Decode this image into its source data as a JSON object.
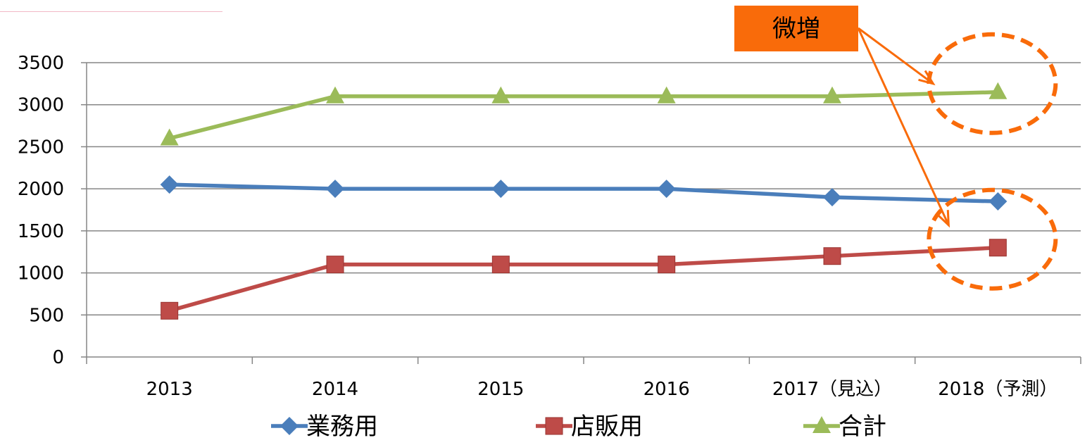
{
  "chart_data": {
    "type": "line",
    "title": "",
    "xlabel": "",
    "ylabel": "",
    "categories": [
      "2013",
      "2014",
      "2015",
      "2016",
      "2017（見込）",
      "2018（予測）"
    ],
    "ylim": [
      0,
      3500
    ],
    "yticks": [
      0,
      500,
      1000,
      1500,
      2000,
      2500,
      3000,
      3500
    ],
    "grid": "horizontal",
    "legend_position": "bottom",
    "series": [
      {
        "name": "業務用",
        "color": "#4a7ebb",
        "marker": "diamond",
        "values": [
          2050,
          2000,
          2000,
          2000,
          1900,
          1850
        ]
      },
      {
        "name": "店販用",
        "color": "#be4b48",
        "marker": "square",
        "values": [
          550,
          1100,
          1100,
          1100,
          1200,
          1300
        ]
      },
      {
        "name": "合計",
        "color": "#9bbb59",
        "marker": "triangle",
        "values": [
          2600,
          3100,
          3100,
          3100,
          3100,
          3150
        ]
      }
    ],
    "annotations": [
      {
        "text": "微増",
        "background": "#f96b0a",
        "arrow_color": "#f96b0a",
        "targets": [
          {
            "series": "合計",
            "category": "2018（予測）"
          },
          {
            "series": "店販用",
            "category": "2018（予測）"
          }
        ]
      }
    ]
  }
}
